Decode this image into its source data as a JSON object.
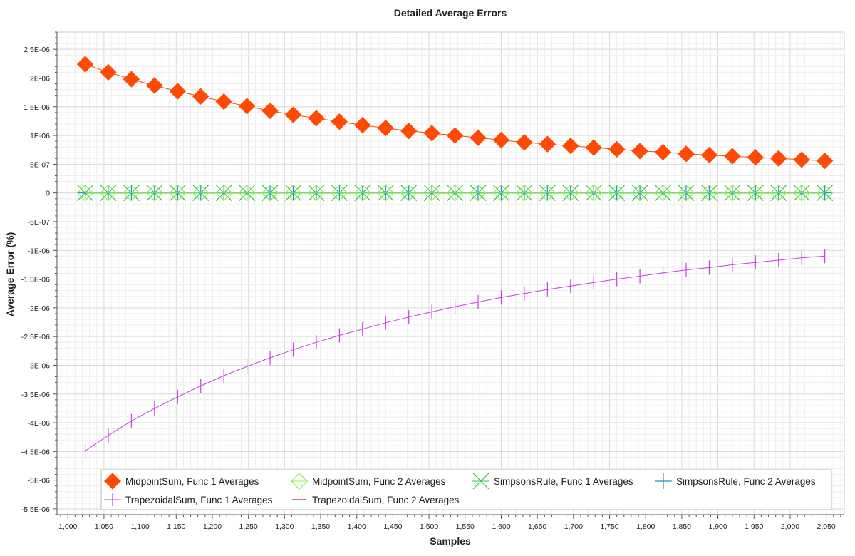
{
  "chart_data": {
    "type": "line",
    "title": "Detailed Average Errors",
    "xlabel": "Samples",
    "ylabel": "Average Error (%)",
    "xlim": [
      985,
      2075
    ],
    "ylim": [
      -5.6e-06,
      2.8e-06
    ],
    "grid": true,
    "legend_position": "bottom",
    "x_ticks": [
      1000,
      1050,
      1100,
      1150,
      1200,
      1250,
      1300,
      1350,
      1400,
      1450,
      1500,
      1550,
      1600,
      1650,
      1700,
      1750,
      1800,
      1850,
      1900,
      1950,
      2000,
      2050
    ],
    "x_tick_labels": [
      "1,000",
      "1,050",
      "1,100",
      "1,150",
      "1,200",
      "1,250",
      "1,300",
      "1,350",
      "1,400",
      "1,450",
      "1,500",
      "1,550",
      "1,600",
      "1,650",
      "1,700",
      "1,750",
      "1,800",
      "1,850",
      "1,900",
      "1,950",
      "2,000",
      "2,050"
    ],
    "y_ticks": [
      2.5e-06,
      2e-06,
      1.5e-06,
      1e-06,
      5e-07,
      0,
      -5e-07,
      -1e-06,
      -1.5e-06,
      -2e-06,
      -2.5e-06,
      -3e-06,
      -3.5e-06,
      -4e-06,
      -4.5e-06,
      -5e-06,
      -5.5e-06
    ],
    "y_tick_labels": [
      "2.5E-06",
      "2E-06",
      "1.5E-06",
      "1E-06",
      "5E-07",
      "0",
      "-5E-07",
      "-1E-06",
      "-1.5E-06",
      "-2E-06",
      "-2.5E-06",
      "-3E-06",
      "-3.5E-06",
      "-4E-06",
      "-4.5E-06",
      "-5E-06",
      "-5.5E-06"
    ],
    "x": [
      1024,
      1056,
      1088,
      1120,
      1152,
      1184,
      1216,
      1248,
      1280,
      1312,
      1344,
      1376,
      1408,
      1440,
      1472,
      1504,
      1536,
      1568,
      1600,
      1632,
      1664,
      1696,
      1728,
      1760,
      1792,
      1824,
      1856,
      1888,
      1920,
      1952,
      1984,
      2016,
      2048
    ],
    "series": [
      {
        "name": "MidpointSum, Func 1 Averages",
        "color": "#ff4a05",
        "marker": "diamond",
        "values": [
          2.24e-06,
          2.1e-06,
          1.98e-06,
          1.87e-06,
          1.77e-06,
          1.68e-06,
          1.59e-06,
          1.51e-06,
          1.43e-06,
          1.36e-06,
          1.3e-06,
          1.24e-06,
          1.18e-06,
          1.13e-06,
          1.08e-06,
          1.04e-06,
          1e-06,
          9.6e-07,
          9.2e-07,
          8.8e-07,
          8.5e-07,
          8.2e-07,
          7.9e-07,
          7.6e-07,
          7.3e-07,
          7.1e-07,
          6.8e-07,
          6.6e-07,
          6.4e-07,
          6.2e-07,
          6e-07,
          5.8e-07,
          5.6e-07
        ]
      },
      {
        "name": "MidpointSum, Func 2 Averages",
        "color": "#8ef04a",
        "marker": "diamond-open",
        "values": [
          0,
          0,
          0,
          0,
          0,
          0,
          0,
          0,
          0,
          0,
          0,
          0,
          0,
          0,
          0,
          0,
          0,
          0,
          0,
          0,
          0,
          0,
          0,
          0,
          0,
          0,
          0,
          0,
          0,
          0,
          0,
          0,
          0
        ]
      },
      {
        "name": "SimpsonsRule, Func 1 Averages",
        "color": "#2ec94a",
        "marker": "x",
        "values": [
          0,
          0,
          0,
          0,
          0,
          0,
          0,
          0,
          0,
          0,
          0,
          0,
          0,
          0,
          0,
          0,
          0,
          0,
          0,
          0,
          0,
          0,
          0,
          0,
          0,
          0,
          0,
          0,
          0,
          0,
          0,
          0,
          0
        ]
      },
      {
        "name": "SimpsonsRule, Func 2 Averages",
        "color": "#1e90c8",
        "marker": "plus",
        "values": [
          0,
          0,
          0,
          0,
          0,
          0,
          0,
          0,
          0,
          0,
          0,
          0,
          0,
          0,
          0,
          0,
          0,
          0,
          0,
          0,
          0,
          0,
          0,
          0,
          0,
          0,
          0,
          0,
          0,
          0,
          0,
          0,
          0
        ]
      },
      {
        "name": "TrapezoidalSum, Func 1 Averages",
        "color": "#c93fe0",
        "marker": "vline",
        "values": [
          -4.49e-06,
          -4.22e-06,
          -3.97e-06,
          -3.75e-06,
          -3.55e-06,
          -3.36e-06,
          -3.18e-06,
          -3.02e-06,
          -2.87e-06,
          -2.73e-06,
          -2.6e-06,
          -2.48e-06,
          -2.37e-06,
          -2.26e-06,
          -2.16e-06,
          -2.07e-06,
          -1.98e-06,
          -1.9e-06,
          -1.82e-06,
          -1.75e-06,
          -1.68e-06,
          -1.62e-06,
          -1.56e-06,
          -1.5e-06,
          -1.45e-06,
          -1.39e-06,
          -1.34e-06,
          -1.3e-06,
          -1.25e-06,
          -1.21e-06,
          -1.17e-06,
          -1.13e-06,
          -1.1e-06
        ]
      },
      {
        "name": "TrapezoidalSum, Func 2 Averages",
        "color": "#e0306a",
        "marker": "none",
        "values": [
          0,
          0,
          0,
          0,
          0,
          0,
          0,
          0,
          0,
          0,
          0,
          0,
          0,
          0,
          0,
          0,
          0,
          0,
          0,
          0,
          0,
          0,
          0,
          0,
          0,
          0,
          0,
          0,
          0,
          0,
          0,
          0,
          0
        ]
      }
    ]
  }
}
